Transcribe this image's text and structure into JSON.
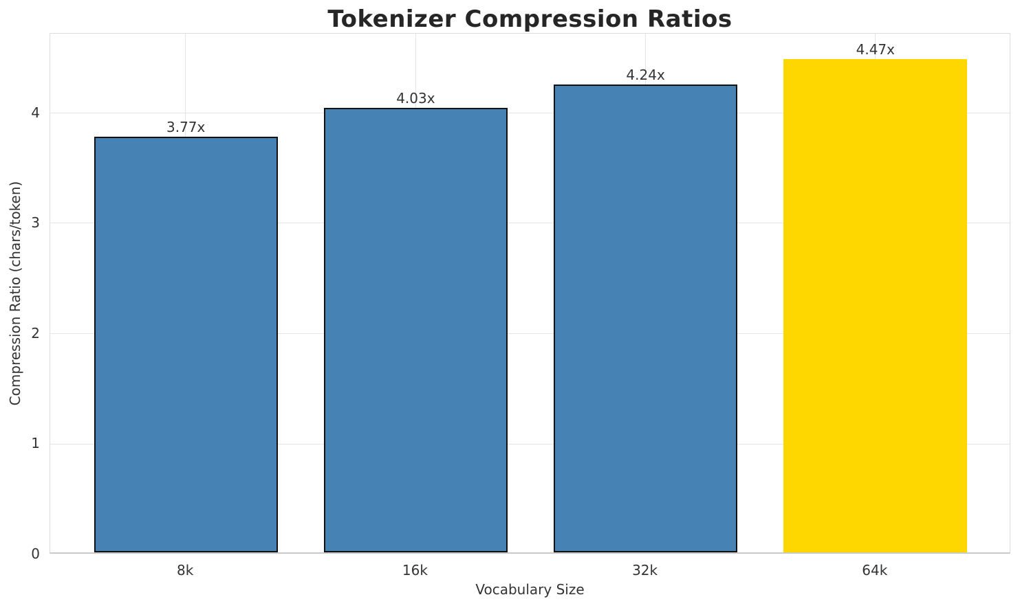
{
  "figure": {
    "background": "#ffffff"
  },
  "chart_data": {
    "type": "bar",
    "title": "Tokenizer Compression Ratios",
    "xlabel": "Vocabulary Size",
    "ylabel": "Compression Ratio (chars/token)",
    "categories": [
      "8k",
      "16k",
      "32k",
      "64k"
    ],
    "values": [
      3.77,
      4.03,
      4.24,
      4.47
    ],
    "bar_labels": [
      "3.77x",
      "4.03x",
      "4.24x",
      "4.47x"
    ],
    "bar_colors": [
      "#4682B4",
      "#4682B4",
      "#4682B4",
      "#FFD700"
    ],
    "bar_edge_colors": [
      "#111111",
      "#111111",
      "#111111",
      "none"
    ],
    "highlight_category": "64k",
    "ylim": [
      0,
      4.72
    ],
    "yticks": [
      0,
      1,
      2,
      3,
      4
    ],
    "xlim": [
      -0.59,
      3.59
    ],
    "bar_width": 0.8,
    "grid": true,
    "grid_color": "#e4e4e4",
    "axes_edge_color": "#dcdcdc",
    "title_color": "#262626",
    "text_color": "#333333",
    "legend": "none"
  }
}
